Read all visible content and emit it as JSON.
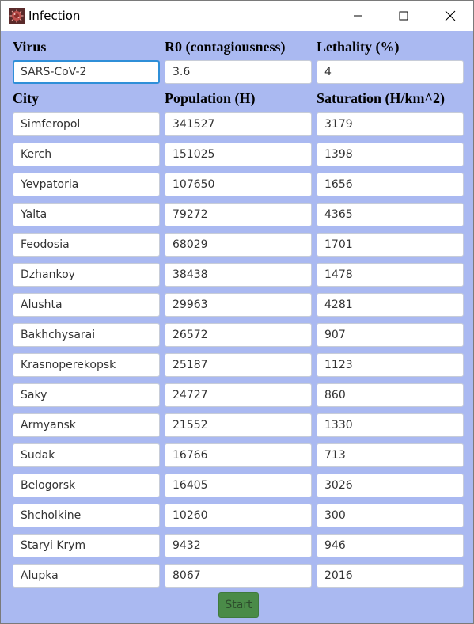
{
  "window": {
    "title": "Infection",
    "icon": "virus-icon",
    "controls": [
      "minimize-icon",
      "maximize-icon",
      "close-icon"
    ]
  },
  "virus_section": {
    "virus_label": "Virus",
    "r0_label": "R0 (contagiousness)",
    "lethality_label": "Lethality (%)",
    "virus_value": "SARS-CoV-2",
    "r0_value": "3.6",
    "lethality_value": "4"
  },
  "cities_section": {
    "city_label": "City",
    "population_label": "Population (H)",
    "saturation_label": "Saturation (H/km^2)",
    "rows": [
      {
        "city": "Simferopol",
        "population": "341527",
        "saturation": "3179"
      },
      {
        "city": "Kerch",
        "population": "151025",
        "saturation": "1398"
      },
      {
        "city": "Yevpatoria",
        "population": "107650",
        "saturation": "1656"
      },
      {
        "city": "Yalta",
        "population": "79272",
        "saturation": "4365"
      },
      {
        "city": "Feodosia",
        "population": "68029",
        "saturation": "1701"
      },
      {
        "city": "Dzhankoy",
        "population": "38438",
        "saturation": "1478"
      },
      {
        "city": "Alushta",
        "population": "29963",
        "saturation": "4281"
      },
      {
        "city": "Bakhchysarai",
        "population": "26572",
        "saturation": "907"
      },
      {
        "city": "Krasnoperekopsk",
        "population": "25187",
        "saturation": "1123"
      },
      {
        "city": "Saky",
        "population": "24727",
        "saturation": "860"
      },
      {
        "city": "Armyansk",
        "population": "21552",
        "saturation": "1330"
      },
      {
        "city": "Sudak",
        "population": "16766",
        "saturation": "713"
      },
      {
        "city": "Belogorsk",
        "population": "16405",
        "saturation": "3026"
      },
      {
        "city": "Shcholkine",
        "population": "10260",
        "saturation": "300"
      },
      {
        "city": "Staryi Krym",
        "population": "9432",
        "saturation": "946"
      },
      {
        "city": "Alupka",
        "population": "8067",
        "saturation": "2016"
      }
    ]
  },
  "actions": {
    "start_label": "Start"
  },
  "colors": {
    "background": "#aab9f1",
    "field_background": "#ffffff",
    "focus_border": "#2f8fd8",
    "start_button": "#4a8b48"
  }
}
